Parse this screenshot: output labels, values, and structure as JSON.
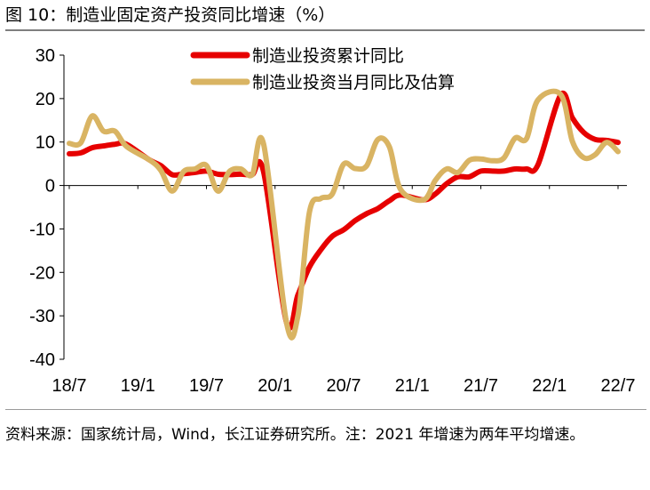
{
  "title": "图 10：制造业固定资产投资同比增速（%）",
  "source": "资料来源：国家统计局，Wind，长江证券研究所。注：2021 年增速为两年平均增速。",
  "chart_data": {
    "type": "line",
    "title": "制造业固定资产投资同比增速（%）",
    "xlabel": "",
    "ylabel": "",
    "ylim": [
      -40,
      30
    ],
    "yticks": [
      -40,
      -30,
      -20,
      -10,
      0,
      10,
      20,
      30
    ],
    "x": [
      "18/7",
      "18/8",
      "18/9",
      "18/10",
      "18/11",
      "18/12",
      "19/1",
      "19/2",
      "19/3",
      "19/4",
      "19/5",
      "19/6",
      "19/7",
      "19/8",
      "19/9",
      "19/10",
      "19/11",
      "19/12",
      "20/1",
      "20/2",
      "20/3",
      "20/4",
      "20/5",
      "20/6",
      "20/7",
      "20/8",
      "20/9",
      "20/10",
      "20/11",
      "20/12",
      "21/1",
      "21/2",
      "21/3",
      "21/4",
      "21/5",
      "21/6",
      "21/7",
      "21/8",
      "21/9",
      "21/10",
      "21/11",
      "21/12",
      "22/1",
      "22/2",
      "22/3",
      "22/4",
      "22/5",
      "22/6",
      "22/7"
    ],
    "xtick_labels": [
      "18/7",
      "19/1",
      "19/7",
      "20/1",
      "20/7",
      "21/1",
      "21/7",
      "22/1",
      "22/7"
    ],
    "legend_position": "top-right",
    "series": [
      {
        "name": "制造业投资累计同比",
        "color": "#e60000",
        "values": [
          7.3,
          7.5,
          8.7,
          9.1,
          9.5,
          9.5,
          null,
          5.9,
          4.6,
          2.5,
          2.7,
          3.0,
          3.3,
          2.6,
          2.5,
          2.6,
          2.5,
          3.1,
          null,
          -31.5,
          -25.2,
          -18.8,
          -14.8,
          -11.7,
          -10.2,
          -8.1,
          -6.5,
          -5.3,
          -3.5,
          -2.2,
          null,
          -3.3,
          -2.0,
          0.4,
          2.0,
          2.0,
          3.3,
          3.3,
          3.3,
          3.8,
          3.8,
          4.8,
          null,
          20.9,
          15.6,
          12.2,
          10.6,
          10.4,
          9.9
        ]
      },
      {
        "name": "制造业投资当月同比及估算",
        "color": "#d9b463",
        "values": [
          9.7,
          9.8,
          16.0,
          12.5,
          12.5,
          9.0,
          null,
          5.9,
          3.5,
          -1.3,
          3.2,
          3.8,
          4.6,
          -1.3,
          3.2,
          3.8,
          2.5,
          9.5,
          null,
          -31.5,
          -30.0,
          -6.2,
          -3.0,
          -2.0,
          4.9,
          3.9,
          4.5,
          10.6,
          8.9,
          -1.0,
          null,
          -3.3,
          1.1,
          3.8,
          3.0,
          5.8,
          6.1,
          5.7,
          6.3,
          10.9,
          10.8,
          19.7,
          null,
          20.9,
          10.2,
          6.4,
          7.1,
          9.9,
          7.8
        ]
      }
    ]
  }
}
